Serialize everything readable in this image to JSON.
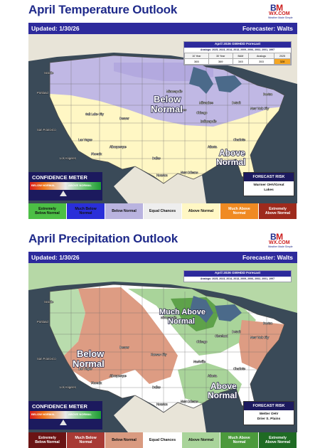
{
  "logo": {
    "mark_b": "B",
    "mark_m": "M",
    "sub": "WX.COM",
    "tagline": "Weather Made Simple"
  },
  "temp": {
    "title": "April Temperature Outlook",
    "updated": "Updated: 1/30/26",
    "forecaster": "Forecaster: Walts",
    "gwhdd": {
      "title": "April 2026 GWHDD Forecast",
      "analogs": "Analogs: 2025, 2023, 2014, 2013, 2009, 2006, 2002, 2001, 1997",
      "headers": [
        "10 Year",
        "30 Year",
        "BAM",
        "Analogs",
        "2025"
      ],
      "values": [
        "365",
        "369",
        "345",
        "353",
        "328"
      ],
      "highlight_color": "#f5a623"
    },
    "labels": {
      "below": [
        "Below",
        "Normal"
      ],
      "above": [
        "Above",
        "Normal"
      ]
    },
    "meter": {
      "title": "CONFIDENCE METER",
      "below": "BELOW NORMAL",
      "above": "ABOVE NORMAL"
    },
    "risk": {
      "title": "FORECAST RISK",
      "text": [
        "Warmer OHV/Great",
        "Lakes"
      ]
    },
    "legend": [
      {
        "label": [
          "Extremely",
          "Below Normal"
        ],
        "color": "#4cbf45",
        "text": "#111111"
      },
      {
        "label": [
          "Much Below",
          "Normal"
        ],
        "color": "#2a2fd9",
        "text": "#111111"
      },
      {
        "label": [
          "Below Normal"
        ],
        "color": "#b9b3df",
        "text": "#111111"
      },
      {
        "label": [
          "Equal Chances"
        ],
        "color": "#eeeeee",
        "text": "#111111"
      },
      {
        "label": [
          "Above Normal"
        ],
        "color": "#fff7c4",
        "text": "#111111"
      },
      {
        "label": [
          "Much Above",
          "Normal"
        ],
        "color": "#f08a22",
        "text": "#ffffff"
      },
      {
        "label": [
          "Extremely",
          "Above Normal"
        ],
        "color": "#9e2a1c",
        "text": "#ffffff"
      }
    ]
  },
  "precip": {
    "title": "April Precipitation Outlook",
    "updated": "Updated: 1/30/26",
    "forecaster": "Forecaster: Walts",
    "gwhdd": {
      "title": "April 2026 GWHDD Forecast",
      "analogs": "Analogs: 2025, 2023, 2014, 2013, 2009, 2006, 2002, 2001, 1997"
    },
    "labels": {
      "much_above": [
        "Much Above",
        "Normal"
      ],
      "below": [
        "Below",
        "Normal"
      ],
      "above": [
        "Above",
        "Normal"
      ]
    },
    "meter": {
      "title": "CONFIDENCE METER",
      "below": "BELOW NORMAL",
      "above": "ABOVE NORMAL"
    },
    "risk": {
      "title": "FORECAST RISK",
      "text": [
        "Wetter OHV",
        "Drier S. Plains"
      ]
    },
    "legend": [
      {
        "label": [
          "Extremely",
          "Below Normal"
        ],
        "color": "#6b1414",
        "text": "#ffffff"
      },
      {
        "label": [
          "Much Below",
          "Normal"
        ],
        "color": "#a83a35",
        "text": "#ffffff"
      },
      {
        "label": [
          "Below Normal"
        ],
        "color": "#d99a80",
        "text": "#111111"
      },
      {
        "label": [
          "Equal Chances"
        ],
        "color": "#ffffff",
        "text": "#111111"
      },
      {
        "label": [
          "Above Normal"
        ],
        "color": "#a9d49a",
        "text": "#111111"
      },
      {
        "label": [
          "Much Above",
          "Normal"
        ],
        "color": "#4c9a3c",
        "text": "#ffffff"
      },
      {
        "label": [
          "Extremely",
          "Above Normal"
        ],
        "color": "#1f6b24",
        "text": "#ffffff"
      }
    ]
  },
  "cities": [
    "Seattle",
    "Portland",
    "San Francisco",
    "Los Angeles",
    "Las Vegas",
    "Phoenix",
    "Salt Lake City",
    "Denver",
    "Albuquerque",
    "Minneapolis",
    "Des Moines",
    "Milwaukee",
    "Chicago",
    "Indianapolis",
    "Detroit",
    "Dallas",
    "Houston",
    "New Orleans",
    "Atlanta",
    "Charlotte",
    "New York City",
    "Boston",
    "Tampa",
    "Miami",
    "Kansas City",
    "Wichita",
    "Nashville",
    "Cleveland"
  ]
}
